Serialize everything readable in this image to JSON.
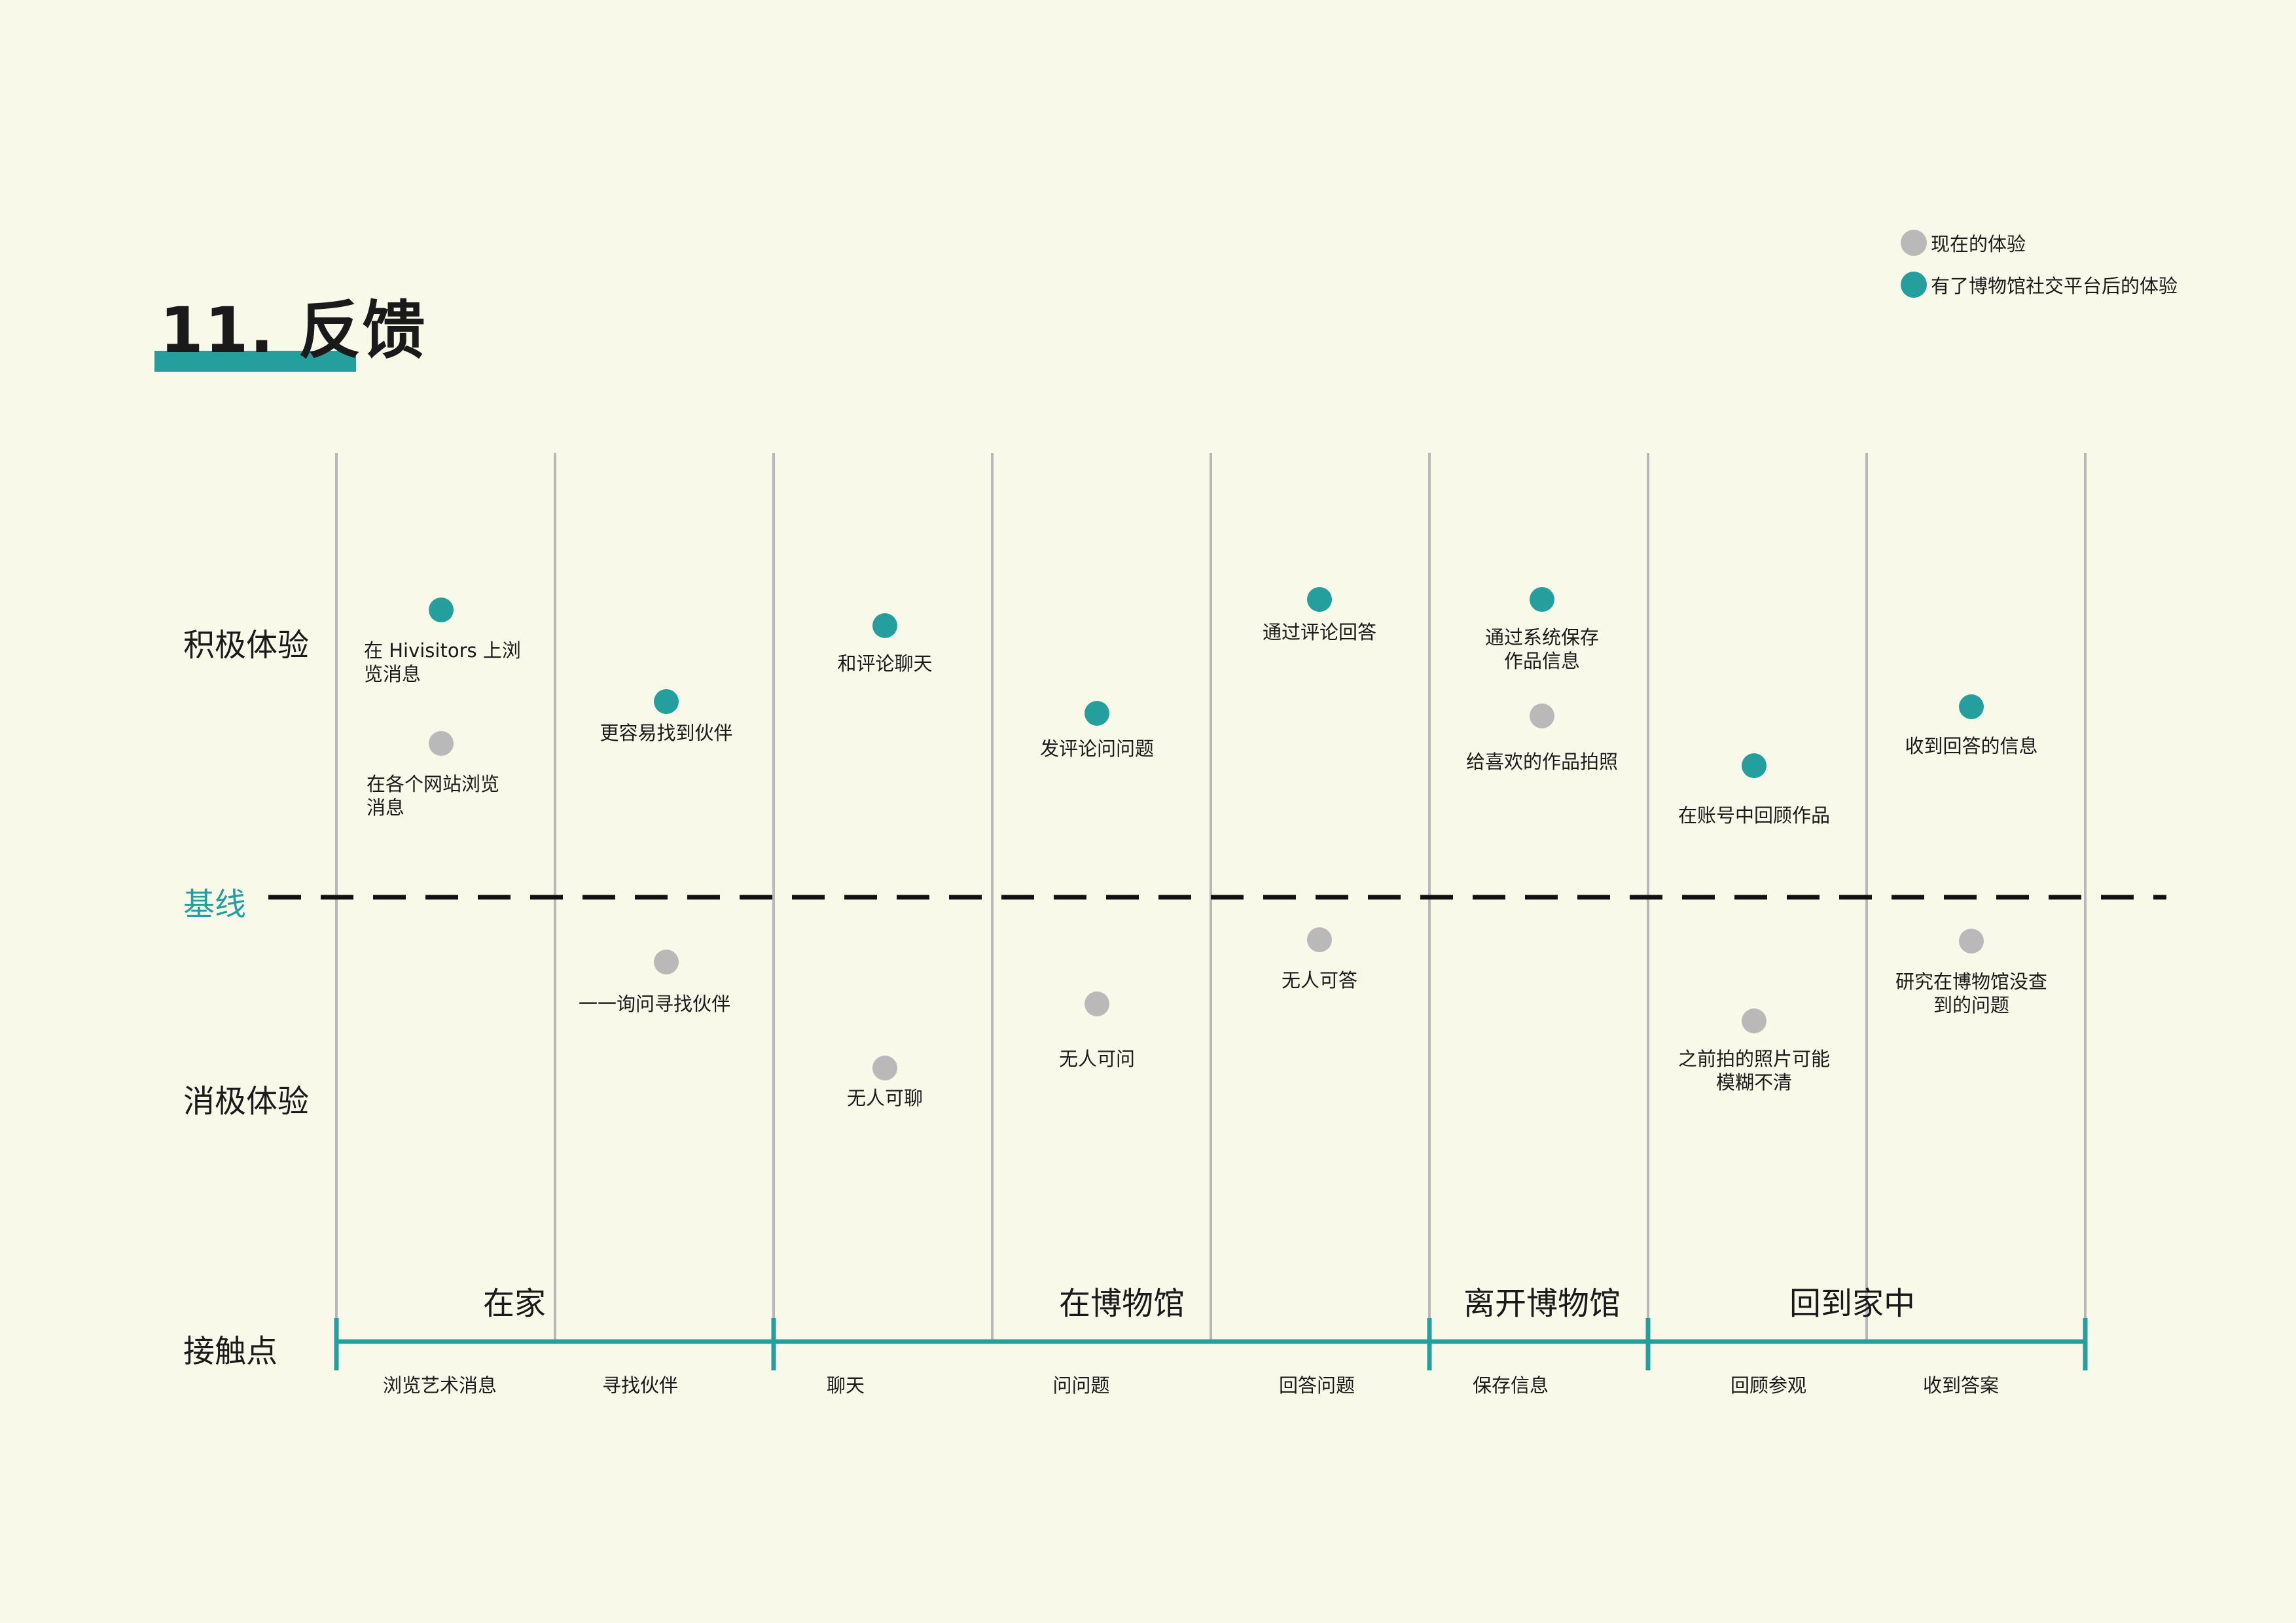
{
  "title": "11. 反馈",
  "legend": [
    {
      "label": "现在的体验",
      "color": "#b9b9b9"
    },
    {
      "label": "有了博物馆社交平台后的体验",
      "color": "#259e9e"
    }
  ],
  "rows": {
    "positive": "积极体验",
    "baseline": "基线",
    "negative": "消极体验",
    "touchpoint": "接触点"
  },
  "colors": {
    "accent": "#259e9e",
    "current": "#b9b9b9",
    "background": "#f9f9ea"
  },
  "phases": [
    "在家",
    "在博物馆",
    "离开博物馆",
    "回到家中"
  ],
  "touchpoints": [
    "浏览艺术消息",
    "寻找伙伴",
    "聊天",
    "问问题",
    "回答问题",
    "保存信息",
    "回顾参观",
    "收到答案"
  ],
  "points": [
    {
      "label": "在 Hivisitors 上浏\n览消息",
      "type": "new"
    },
    {
      "label": "在各个网站浏览\n消息",
      "type": "current"
    },
    {
      "label": "更容易找到伙伴",
      "type": "new"
    },
    {
      "label": "一一询问寻找伙伴",
      "type": "current"
    },
    {
      "label": "和评论聊天",
      "type": "new"
    },
    {
      "label": "无人可聊",
      "type": "current"
    },
    {
      "label": "发评论问问题",
      "type": "new"
    },
    {
      "label": "无人可问",
      "type": "current"
    },
    {
      "label": "通过评论回答",
      "type": "new"
    },
    {
      "label": "无人可答",
      "type": "current"
    },
    {
      "label": "通过系统保存\n作品信息",
      "type": "new"
    },
    {
      "label": "给喜欢的作品拍照",
      "type": "current"
    },
    {
      "label": "在账号中回顾作品",
      "type": "new"
    },
    {
      "label": "之前拍的照片可能\n模糊不清",
      "type": "current"
    },
    {
      "label": "收到回答的信息",
      "type": "new"
    },
    {
      "label": "研究在博物馆没查\n到的问题",
      "type": "current"
    }
  ]
}
